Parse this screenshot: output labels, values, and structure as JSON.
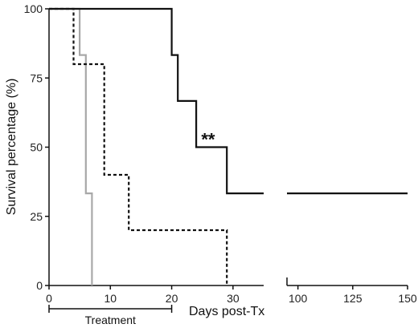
{
  "chart_data": {
    "type": "line",
    "xlabel": "Days post-Tx",
    "ylabel": "Survival percentage (%)",
    "xlim_segments": [
      [
        0,
        35
      ],
      [
        95,
        150
      ]
    ],
    "ylim": [
      0,
      100
    ],
    "x_ticks_left": [
      0,
      10,
      20,
      30
    ],
    "x_ticks_right": [
      100,
      125,
      150
    ],
    "y_ticks": [
      0,
      25,
      50,
      75,
      100
    ],
    "series": [
      {
        "style": "solid-gray",
        "color": "#a8a8a8",
        "values": [
          [
            0,
            100
          ],
          [
            5,
            100
          ],
          [
            5,
            83.3
          ],
          [
            6,
            83.3
          ],
          [
            6,
            33.3
          ],
          [
            7,
            33.3
          ],
          [
            7,
            0
          ]
        ]
      },
      {
        "style": "dashed-black",
        "color": "#111111",
        "values": [
          [
            0,
            100
          ],
          [
            4,
            100
          ],
          [
            4,
            80
          ],
          [
            9,
            80
          ],
          [
            9,
            40
          ],
          [
            13,
            40
          ],
          [
            13,
            20
          ],
          [
            29,
            20
          ],
          [
            29,
            0
          ]
        ]
      },
      {
        "style": "solid-black",
        "color": "#111111",
        "values": [
          [
            0,
            100
          ],
          [
            20,
            100
          ],
          [
            20,
            83.3
          ],
          [
            21,
            83.3
          ],
          [
            21,
            66.7
          ],
          [
            24,
            66.7
          ],
          [
            24,
            50
          ],
          [
            29,
            50
          ],
          [
            29,
            33.3
          ],
          [
            35,
            33.3
          ],
          [
            95,
            33.3
          ],
          [
            150,
            33.3
          ]
        ]
      }
    ],
    "annotations": [
      {
        "text": "**",
        "x": 26,
        "y": 50
      }
    ],
    "treatment_bar": {
      "label": "Treatment",
      "x_start": 0,
      "x_end": 20
    }
  }
}
